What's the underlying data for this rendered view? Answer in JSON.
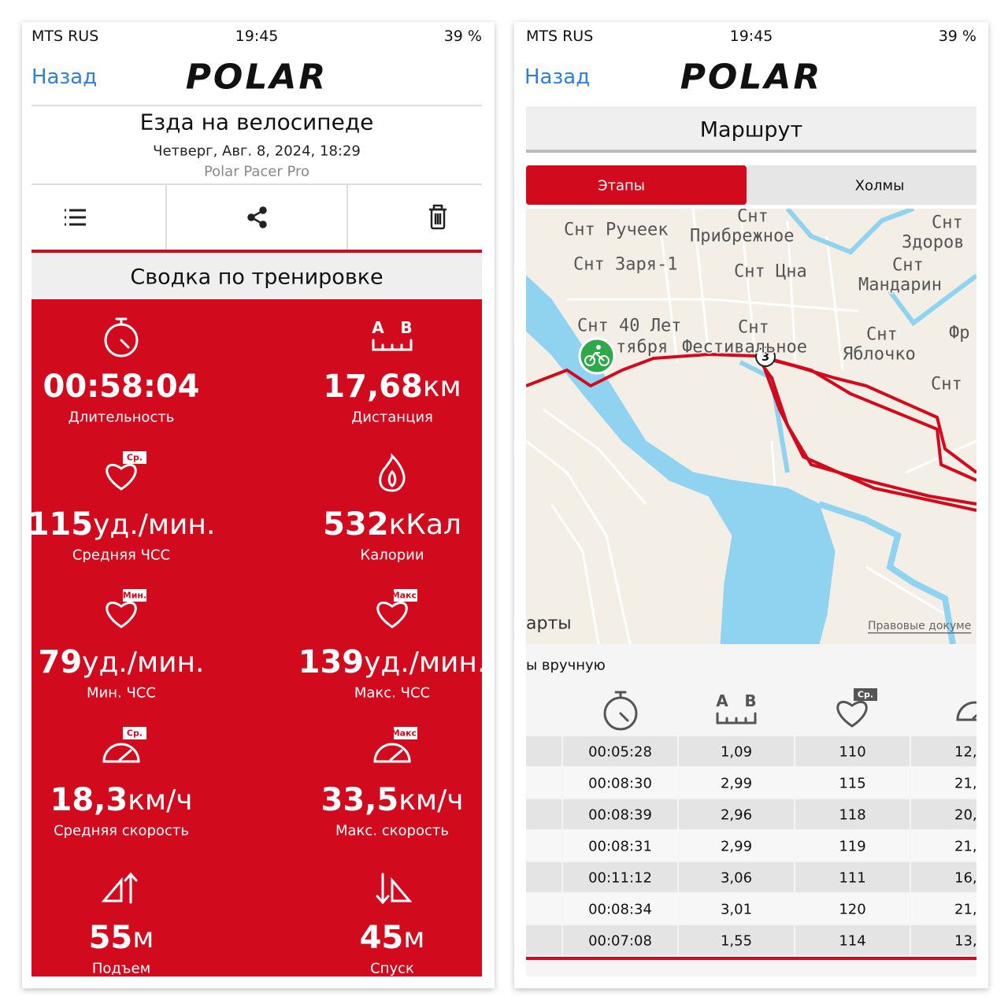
{
  "left": {
    "status": {
      "carrier": "MTS RUS",
      "time": "19:45",
      "battery": "39 %"
    },
    "nav": {
      "back": "Назад",
      "logo": "POLAR"
    },
    "header": {
      "title": "Езда на велосипеде",
      "date": "Четверг, Авг. 8, 2024, 18:29",
      "device": "Polar Pacer Pro"
    },
    "summary": {
      "title": "Сводка по тренировке",
      "metrics": [
        {
          "value": "00:58:04",
          "label": "Длительность"
        },
        {
          "value": "17,68",
          "unit": "км",
          "label": "Дистанция",
          "ends": [
            "A",
            "B"
          ]
        },
        {
          "value": "115",
          "unit": "уд./мин.",
          "label": "Средняя ЧСС",
          "badge": "Ср."
        },
        {
          "value": "532",
          "unit": "кКал",
          "label": "Калории"
        },
        {
          "value": "79",
          "unit": "уд./мин.",
          "label": "Мин. ЧСС",
          "badge": "Мин."
        },
        {
          "value": "139",
          "unit": "уд./мин.",
          "label": "Макс. ЧСС",
          "badge": "Макс."
        },
        {
          "value": "18,3",
          "unit": "км/ч",
          "label": "Средняя скорость",
          "badge": "Ср."
        },
        {
          "value": "33,5",
          "unit": "км/ч",
          "label": "Макс. скорость",
          "badge": "Макс."
        },
        {
          "value": "55",
          "unit": "м",
          "label": "Подъем"
        },
        {
          "value": "45",
          "unit": "м",
          "label": "Спуск"
        }
      ]
    }
  },
  "right": {
    "status": {
      "carrier": "MTS RUS",
      "time": "19:45",
      "battery": "39 %"
    },
    "nav": {
      "back": "Назад",
      "logo": "POLAR"
    },
    "title": "Маршрут",
    "tabs": [
      "Этапы",
      "Холмы"
    ],
    "map": {
      "labels": [
        "Снт Ручеек",
        "Снт",
        "Прибрежное",
        "Снт",
        "Здоров",
        "Снт Заря-1",
        "Снт Цна",
        "Снт",
        "Мандарин",
        "Снт 40 Лет",
        "Снт",
        "Снт",
        "Фр",
        "тября",
        "Фестивальное",
        "Яблочко",
        "Снт"
      ],
      "marker": "3",
      "corner_text": "арты",
      "attribution": "Правовые докуме"
    },
    "laps": {
      "caption": "ы вручную",
      "distance_ends": [
        "A",
        "B"
      ],
      "hr_badge": "Ср.",
      "rows": [
        [
          "00:05:28",
          "1,09",
          "110",
          "12,"
        ],
        [
          "00:08:30",
          "2,99",
          "115",
          "21,"
        ],
        [
          "00:08:39",
          "2,96",
          "118",
          "20,"
        ],
        [
          "00:08:31",
          "2,99",
          "119",
          "21,"
        ],
        [
          "00:11:12",
          "3,06",
          "111",
          "16,"
        ],
        [
          "00:08:34",
          "3,01",
          "120",
          "21,"
        ],
        [
          "00:07:08",
          "1,55",
          "114",
          "13,"
        ]
      ]
    }
  }
}
